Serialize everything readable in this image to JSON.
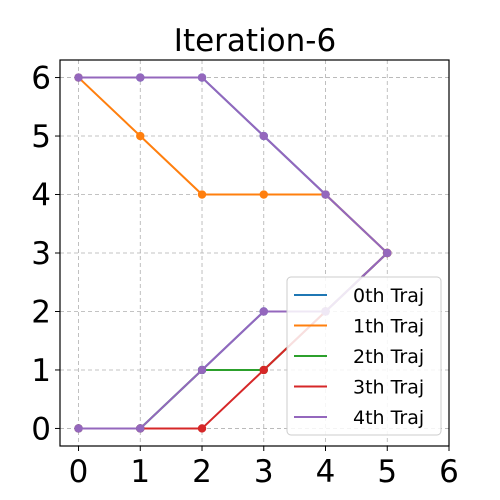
{
  "chart_data": {
    "type": "line",
    "title": "Iteration-6",
    "xlabel": "",
    "ylabel": "",
    "xlim": [
      -0.3,
      6
    ],
    "ylim": [
      -0.3,
      6.3
    ],
    "xticks": [
      "0",
      "1",
      "2",
      "3",
      "4",
      "5",
      "6"
    ],
    "yticks": [
      "0",
      "1",
      "2",
      "3",
      "4",
      "5",
      "6"
    ],
    "grid": true,
    "legend_position": "lower-right",
    "series": [
      {
        "name": "0th Traj",
        "color": "#1f77b4",
        "points": [
          [
            0,
            6
          ],
          [
            1,
            6
          ],
          [
            2,
            6
          ],
          [
            3,
            5
          ],
          [
            4,
            4
          ],
          [
            5,
            3
          ],
          [
            4,
            2
          ],
          [
            3,
            2
          ],
          [
            2,
            1
          ],
          [
            1,
            0
          ],
          [
            0,
            0
          ]
        ]
      },
      {
        "name": "1th Traj",
        "color": "#ff7f0e",
        "points": [
          [
            0,
            6
          ],
          [
            1,
            5
          ],
          [
            2,
            4
          ],
          [
            3,
            4
          ],
          [
            4,
            4
          ],
          [
            5,
            3
          ]
        ]
      },
      {
        "name": "2th Traj",
        "color": "#2ca02c",
        "points": [
          [
            5,
            3
          ],
          [
            4,
            2
          ],
          [
            3,
            1
          ],
          [
            2,
            1
          ],
          [
            1,
            0
          ],
          [
            0,
            0
          ]
        ]
      },
      {
        "name": "3th Traj",
        "color": "#d62728",
        "points": [
          [
            5,
            3
          ],
          [
            4,
            2
          ],
          [
            3,
            1
          ],
          [
            2,
            0
          ],
          [
            1,
            0
          ],
          [
            0,
            0
          ]
        ]
      },
      {
        "name": "4th Traj",
        "color": "#9467bd",
        "points": [
          [
            0,
            6
          ],
          [
            1,
            6
          ],
          [
            2,
            6
          ],
          [
            3,
            5
          ],
          [
            4,
            4
          ],
          [
            5,
            3
          ],
          [
            4,
            2
          ],
          [
            3,
            2
          ],
          [
            2,
            1
          ],
          [
            1,
            0
          ],
          [
            0,
            0
          ]
        ]
      }
    ]
  }
}
